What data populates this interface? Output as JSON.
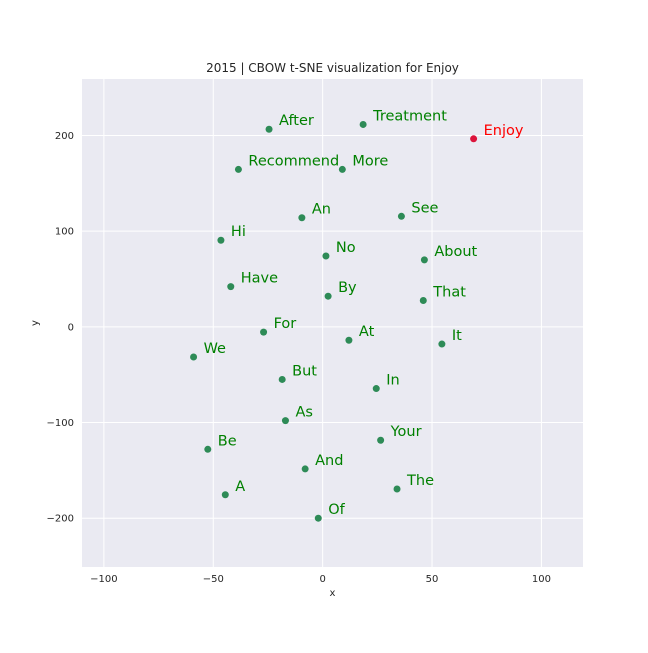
{
  "chart_data": {
    "type": "scatter",
    "title": "2015 | CBOW t-SNE visualization for Enjoy",
    "xlabel": "x",
    "ylabel": "y",
    "xlim": [
      -110,
      119
    ],
    "ylim": [
      -251,
      259
    ],
    "xticks": [
      -100,
      -50,
      0,
      50,
      100
    ],
    "xtick_labels": [
      "−100",
      "−50",
      "0",
      "50",
      "100"
    ],
    "yticks": [
      -200,
      -100,
      0,
      100,
      200
    ],
    "ytick_labels": [
      "−200",
      "−100",
      "0",
      "100",
      "200"
    ],
    "grid": true,
    "points": [
      {
        "label": "After",
        "x": -24.5,
        "y": 206.5
      },
      {
        "label": "Treatment",
        "x": 18.5,
        "y": 211.5
      },
      {
        "label": "Enjoy",
        "x": 69.0,
        "y": 196.5,
        "highlight": true
      },
      {
        "label": "Recommend",
        "x": -38.5,
        "y": 164.5
      },
      {
        "label": "More",
        "x": 9.0,
        "y": 164.5
      },
      {
        "label": "An",
        "x": -9.5,
        "y": 114.0
      },
      {
        "label": "See",
        "x": 36.0,
        "y": 115.5
      },
      {
        "label": "Hi",
        "x": -46.5,
        "y": 90.5
      },
      {
        "label": "No",
        "x": 1.5,
        "y": 74.0
      },
      {
        "label": "About",
        "x": 46.5,
        "y": 70.0
      },
      {
        "label": "Have",
        "x": -42.0,
        "y": 42.0
      },
      {
        "label": "By",
        "x": 2.5,
        "y": 32.0
      },
      {
        "label": "That",
        "x": 46.0,
        "y": 27.5
      },
      {
        "label": "For",
        "x": -27.0,
        "y": -5.5
      },
      {
        "label": "At",
        "x": 12.0,
        "y": -14.0
      },
      {
        "label": "It",
        "x": 54.5,
        "y": -18.0
      },
      {
        "label": "We",
        "x": -59.0,
        "y": -31.5
      },
      {
        "label": "But",
        "x": -18.5,
        "y": -55.0
      },
      {
        "label": "In",
        "x": 24.5,
        "y": -64.5
      },
      {
        "label": "As",
        "x": -17.0,
        "y": -98.0
      },
      {
        "label": "Your",
        "x": 26.5,
        "y": -118.5
      },
      {
        "label": "Be",
        "x": -52.5,
        "y": -128.0
      },
      {
        "label": "And",
        "x": -8.0,
        "y": -148.5
      },
      {
        "label": "A",
        "x": -44.5,
        "y": -175.5
      },
      {
        "label": "The",
        "x": 34.0,
        "y": -169.5
      },
      {
        "label": "Of",
        "x": -2.0,
        "y": -200.0
      }
    ],
    "colors": {
      "background": "#EAEAF2",
      "grid": "#FFFFFF",
      "point": "#2E8B57",
      "label": "#008000",
      "highlight_point": "#DC143C",
      "highlight_label": "#FF0000"
    }
  }
}
